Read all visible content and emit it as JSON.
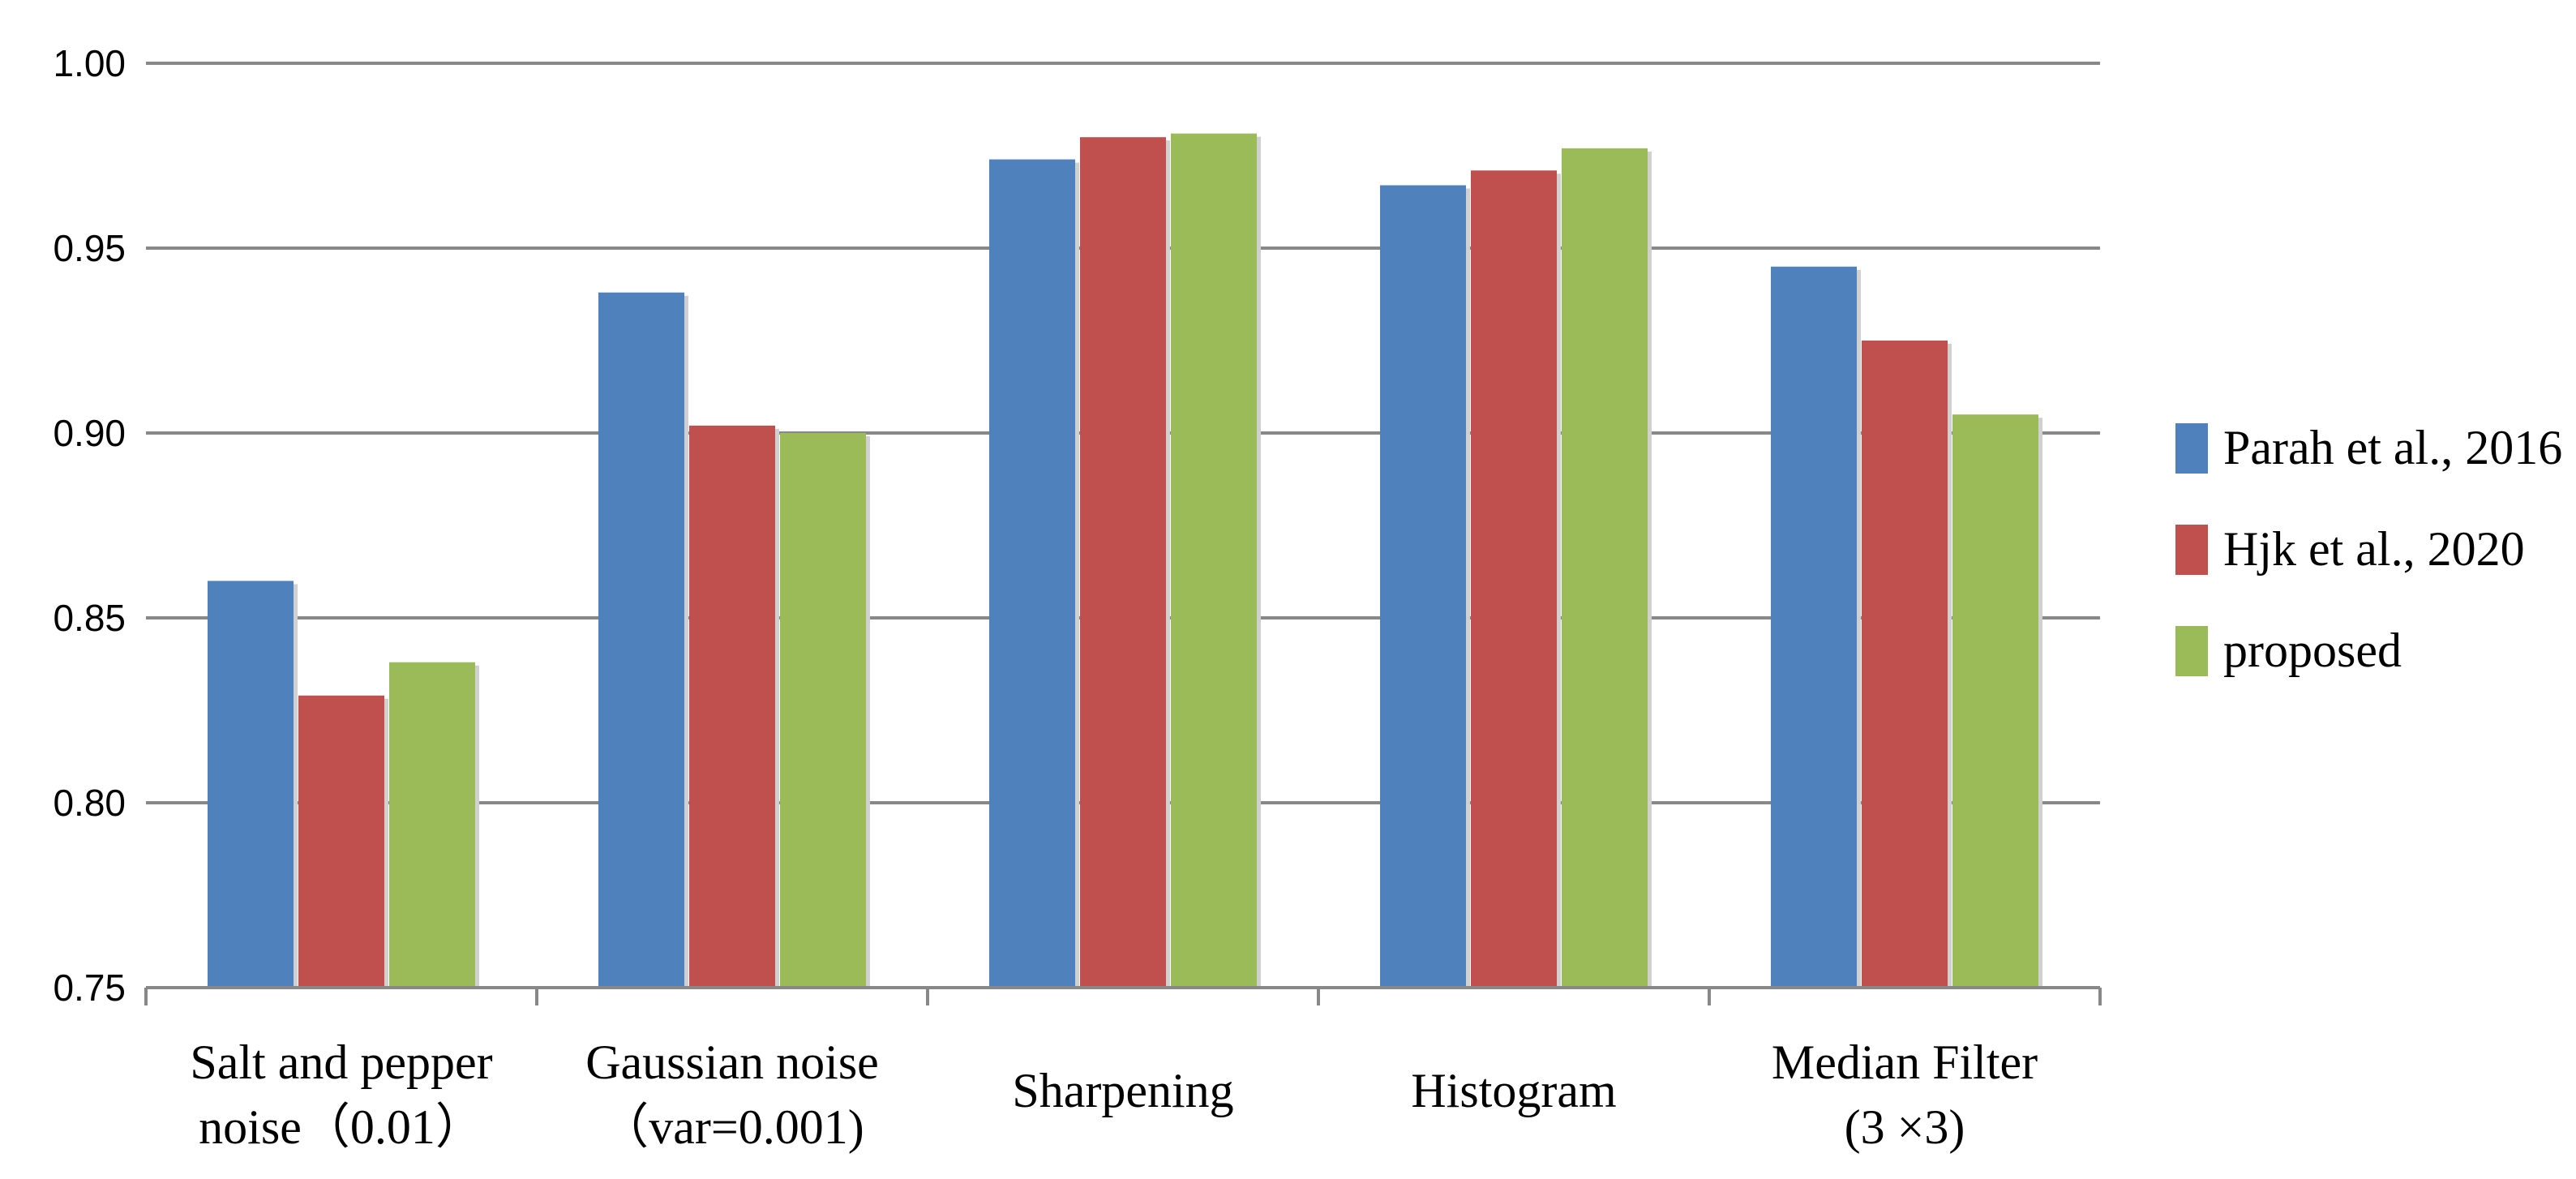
{
  "chart_data": {
    "type": "bar",
    "categories": [
      [
        "Salt and pepper",
        "noise（0.01）"
      ],
      [
        "Gaussian noise",
        "（var=0.001)"
      ],
      [
        "Sharpening"
      ],
      [
        "Histogram"
      ],
      [
        "Median Filter",
        "(3 ×3)"
      ]
    ],
    "series": [
      {
        "name": "Parah et al., 2016",
        "color": "#4F81BD",
        "values": [
          0.86,
          0.938,
          0.974,
          0.967,
          0.945
        ]
      },
      {
        "name": "Hjk et al., 2020",
        "color": "#C0504D",
        "values": [
          0.829,
          0.902,
          0.98,
          0.971,
          0.925
        ]
      },
      {
        "name": "proposed",
        "color": "#9BBB59",
        "values": [
          0.838,
          0.9,
          0.981,
          0.977,
          0.905
        ]
      }
    ],
    "ylim": [
      0.75,
      1.0
    ],
    "yticks": [
      "0.75",
      "0.80",
      "0.85",
      "0.90",
      "0.95",
      "1.00"
    ],
    "grid": true,
    "legend": "right"
  }
}
